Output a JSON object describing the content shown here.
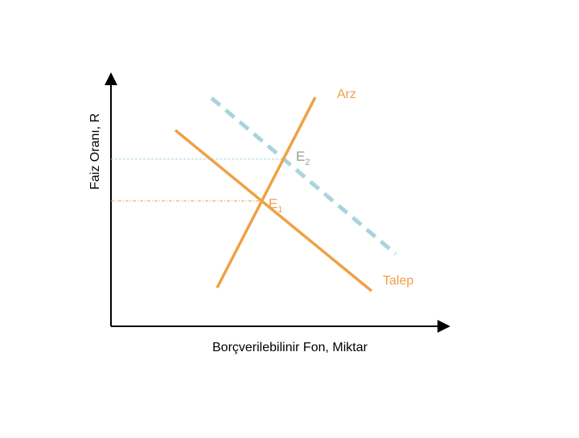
{
  "axes": {
    "y_label": "Faiz Oranı, R",
    "x_label": "Borçverilebilinir Fon, Miktar"
  },
  "curves": {
    "supply_label": "Arz",
    "demand_label": "Talep"
  },
  "equilibria": {
    "e1": {
      "letter": "E",
      "subscript": "1"
    },
    "e2": {
      "letter": "E",
      "subscript": "2"
    }
  },
  "colors": {
    "curve": "#f0a043",
    "shifted_demand": "#a9d4dd",
    "e1_guide": "#e0a04a",
    "e2_guide": "#a9d4dd",
    "e2_label": "#9b9b9b",
    "axis": "#000000"
  }
}
